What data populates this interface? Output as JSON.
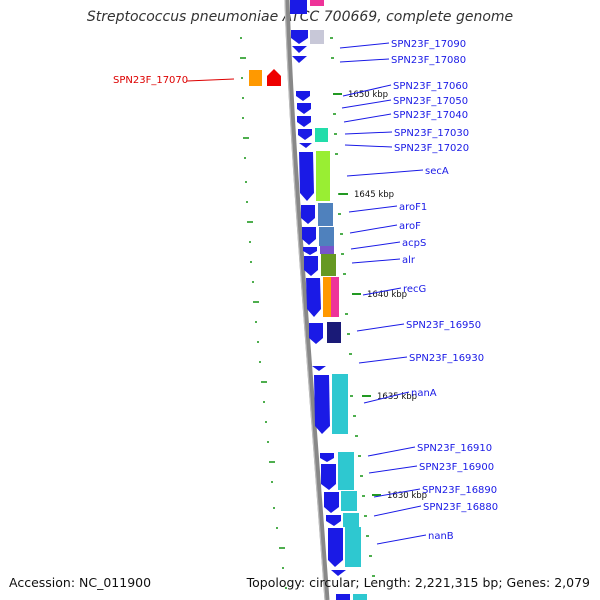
{
  "title": "Streptococcus pneumoniae ATCC 700669, complete genome",
  "accession": "Accession: NC_011900",
  "topology": "Topology: circular; Length: 2,221,315 bp; Genes: 2,079",
  "colors": {
    "forward_gene": "#1a1ae6",
    "selected_gene": "#dd0000",
    "feature_cyan": "#2ec8d0",
    "feature_green": "#99ee33",
    "feature_steel": "#4f81bd",
    "feature_olive": "#669922",
    "feature_orange": "#ff9900",
    "feature_magenta": "#ee3399",
    "feature_navy": "#1a1a77",
    "tick_green": "#229922"
  },
  "tick_labels": [
    "1650 kbp",
    "1645 kbp",
    "1640 kbp",
    "1635 kbp",
    "1630 kbp"
  ],
  "genes": [
    {
      "label": "SPN23F_17090",
      "selected": false
    },
    {
      "label": "SPN23F_17080",
      "selected": false
    },
    {
      "label": "SPN23F_17070",
      "selected": true
    },
    {
      "label": "SPN23F_17060",
      "selected": false
    },
    {
      "label": "SPN23F_17050",
      "selected": false
    },
    {
      "label": "SPN23F_17040",
      "selected": false
    },
    {
      "label": "SPN23F_17030",
      "selected": false
    },
    {
      "label": "SPN23F_17020",
      "selected": false
    },
    {
      "label": "secA",
      "selected": false
    },
    {
      "label": "aroF1",
      "selected": false
    },
    {
      "label": "aroF",
      "selected": false
    },
    {
      "label": "acpS",
      "selected": false
    },
    {
      "label": "alr",
      "selected": false
    },
    {
      "label": "recG",
      "selected": false
    },
    {
      "label": "SPN23F_16950",
      "selected": false
    },
    {
      "label": "SPN23F_16930",
      "selected": false
    },
    {
      "label": "nanA",
      "selected": false
    },
    {
      "label": "SPN23F_16910",
      "selected": false
    },
    {
      "label": "SPN23F_16900",
      "selected": false
    },
    {
      "label": "SPN23F_16890",
      "selected": false
    },
    {
      "label": "SPN23F_16880",
      "selected": false
    },
    {
      "label": "nanB",
      "selected": false
    }
  ]
}
